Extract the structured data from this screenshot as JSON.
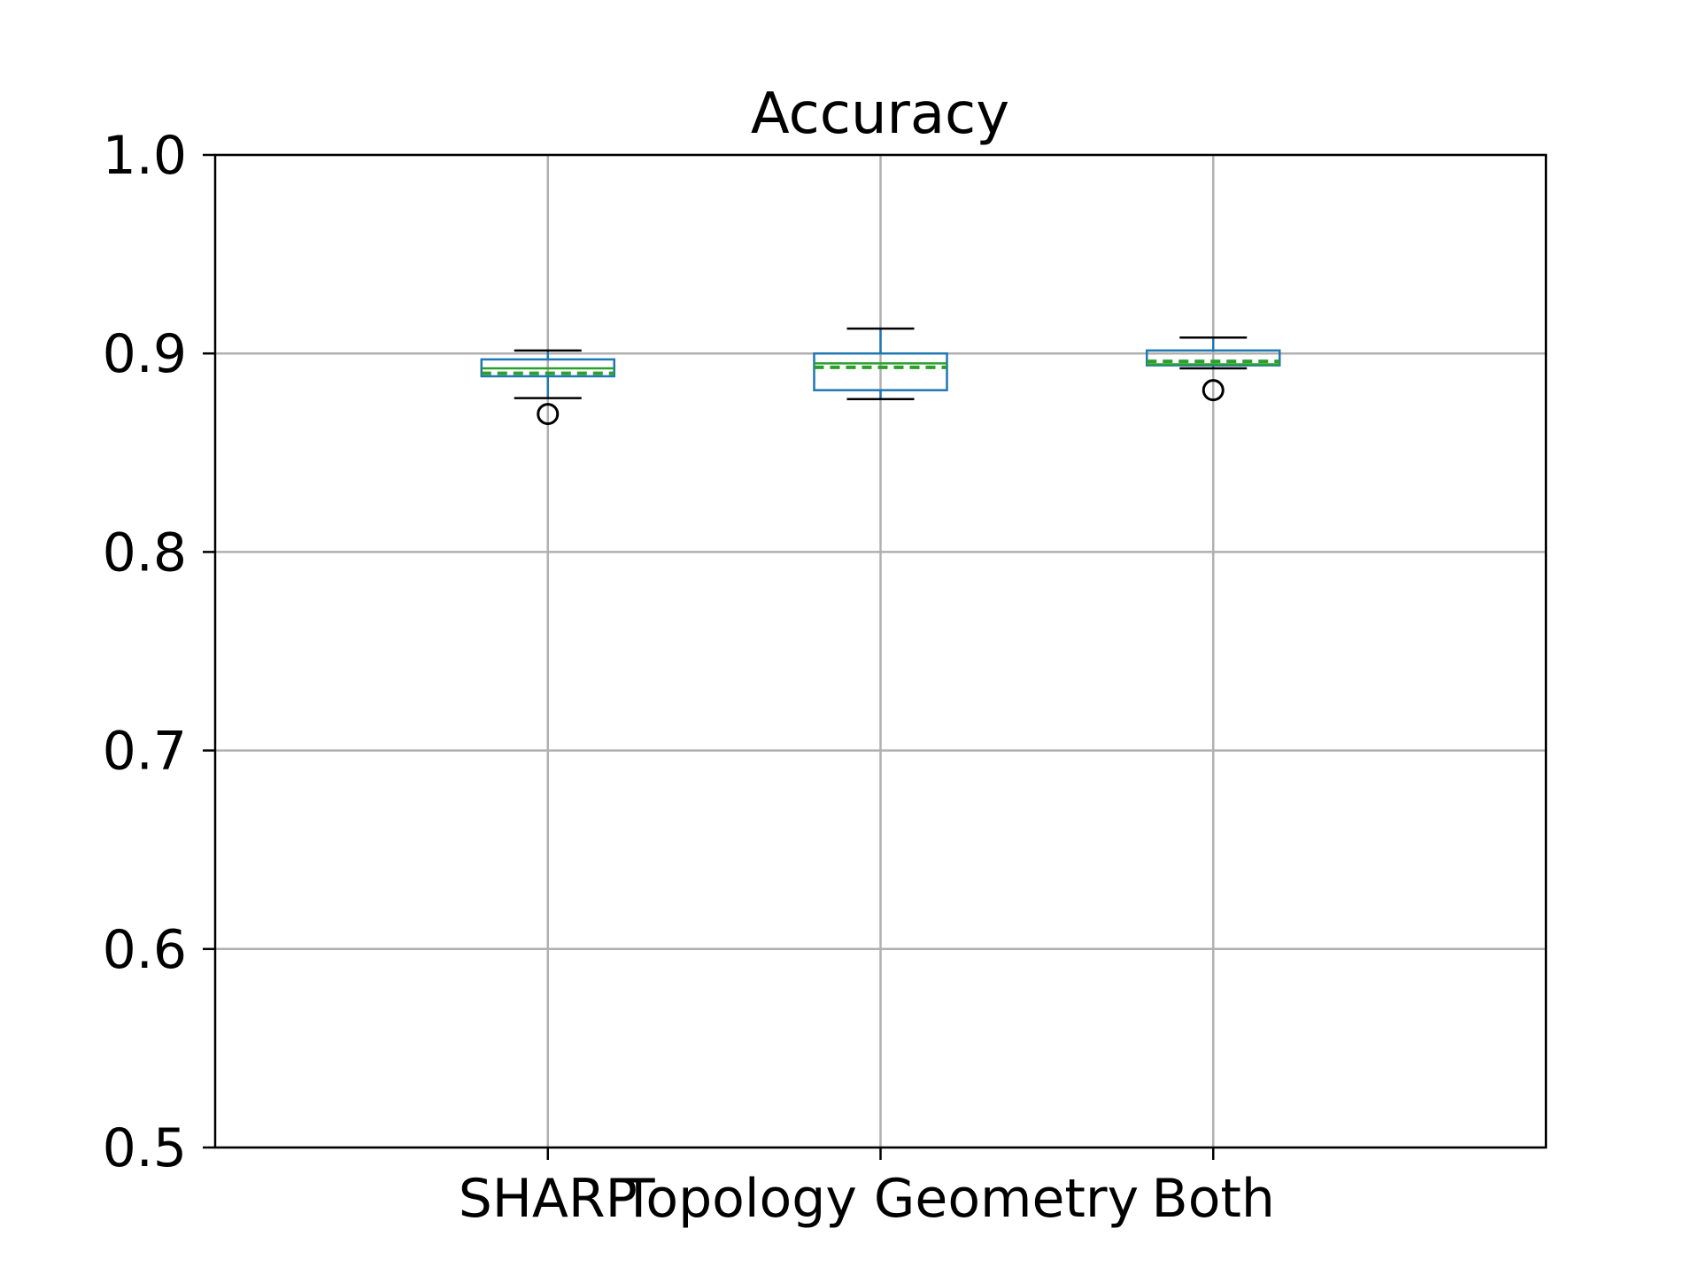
{
  "chart_data": {
    "type": "box",
    "title": "Accuracy",
    "xlabel": "",
    "ylabel": "",
    "categories": [
      "SHARP",
      "Topology Geometry",
      "Both"
    ],
    "ylim": [
      0.5,
      1.0
    ],
    "yticks": [
      "0.5",
      "0.6",
      "0.7",
      "0.8",
      "0.9",
      "1.0"
    ],
    "grid": true,
    "show_means": true,
    "boxes": [
      {
        "whislo": 0.8775,
        "q1": 0.8885,
        "med": 0.8925,
        "mean": 0.89,
        "q3": 0.897,
        "whishi": 0.9015,
        "fliers": [
          0.8695
        ]
      },
      {
        "whislo": 0.877,
        "q1": 0.8815,
        "med": 0.895,
        "mean": 0.893,
        "q3": 0.9,
        "whishi": 0.9125,
        "fliers": []
      },
      {
        "whislo": 0.8925,
        "q1": 0.894,
        "med": 0.8945,
        "mean": 0.896,
        "q3": 0.9015,
        "whishi": 0.908,
        "fliers": [
          0.8815
        ]
      }
    ],
    "colors": {
      "box": "#1f77b4",
      "median": "#2ca02c",
      "mean": "#2ca02c",
      "whisker": "#1f77b4",
      "cap": "#000000",
      "flier": "#000000",
      "grid": "#b0b0b0"
    }
  }
}
